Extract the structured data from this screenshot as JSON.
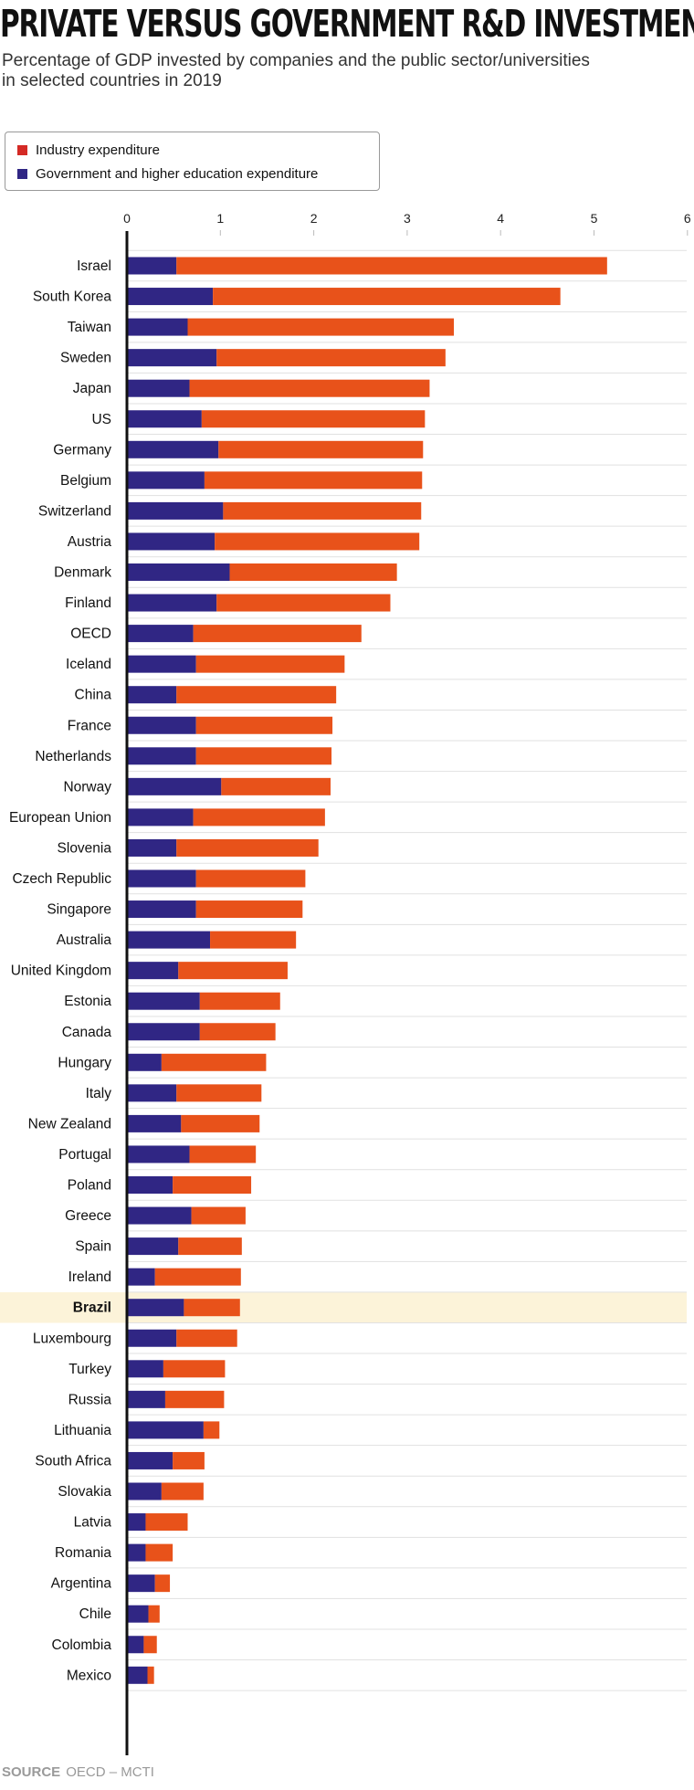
{
  "header": {
    "title": "PRIVATE VERSUS GOVERNMENT R&D INVESTMENT",
    "subtitle": "Percentage of GDP invested by companies and the public sector/universities in selected countries in 2019"
  },
  "legend": {
    "items": [
      {
        "label": "Industry expenditure",
        "color": "#d42a25"
      },
      {
        "label": "Government and higher education expenditure",
        "color": "#302684"
      }
    ]
  },
  "source": {
    "label": "SOURCE",
    "text": "OECD – MCTI"
  },
  "chart_data": {
    "type": "bar",
    "orientation": "horizontal",
    "stacked": true,
    "xlim": [
      0,
      6
    ],
    "ticks": [
      "0",
      "1",
      "2",
      "3",
      "4",
      "5",
      "6"
    ],
    "highlight": "Brazil",
    "highlight_color": "#fcf3d9",
    "categories": [
      "Israel",
      "South Korea",
      "Taiwan",
      "Sweden",
      "Japan",
      "US",
      "Germany",
      "Belgium",
      "Switzerland",
      "Austria",
      "Denmark",
      "Finland",
      "OECD",
      "Iceland",
      "China",
      "France",
      "Netherlands",
      "Norway",
      "European Union",
      "Slovenia",
      "Czech Republic",
      "Singapore",
      "Australia",
      "United Kingdom",
      "Estonia",
      "Canada",
      "Hungary",
      "Italy",
      "New Zealand",
      "Portugal",
      "Poland",
      "Greece",
      "Spain",
      "Ireland",
      "Brazil",
      "Luxembourg",
      "Turkey",
      "Russia",
      "Lithuania",
      "South Africa",
      "Slovakia",
      "Latvia",
      "Romania",
      "Argentina",
      "Chile",
      "Colombia",
      "Mexico"
    ],
    "series": [
      {
        "name": "Government and higher education expenditure",
        "color": "#302684",
        "values": [
          0.53,
          0.92,
          0.65,
          0.96,
          0.67,
          0.8,
          0.98,
          0.83,
          1.03,
          0.94,
          1.1,
          0.96,
          0.71,
          0.74,
          0.53,
          0.74,
          0.74,
          1.01,
          0.71,
          0.53,
          0.74,
          0.74,
          0.89,
          0.55,
          0.78,
          0.78,
          0.37,
          0.53,
          0.58,
          0.67,
          0.49,
          0.69,
          0.55,
          0.3,
          0.61,
          0.53,
          0.39,
          0.41,
          0.82,
          0.49,
          0.37,
          0.2,
          0.2,
          0.3,
          0.23,
          0.18,
          0.22
        ]
      },
      {
        "name": "Industry expenditure",
        "color": "#e8521a",
        "values": [
          4.61,
          3.72,
          2.85,
          2.45,
          2.57,
          2.39,
          2.19,
          2.33,
          2.12,
          2.19,
          1.79,
          1.86,
          1.8,
          1.59,
          1.71,
          1.46,
          1.45,
          1.17,
          1.41,
          1.52,
          1.17,
          1.14,
          0.92,
          1.17,
          0.86,
          0.81,
          1.12,
          0.91,
          0.84,
          0.71,
          0.84,
          0.58,
          0.68,
          0.92,
          0.6,
          0.65,
          0.66,
          0.63,
          0.17,
          0.34,
          0.45,
          0.45,
          0.29,
          0.16,
          0.12,
          0.14,
          0.07
        ]
      }
    ]
  }
}
